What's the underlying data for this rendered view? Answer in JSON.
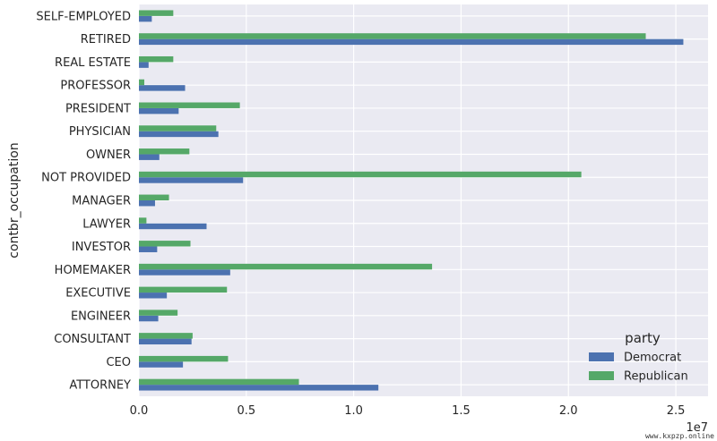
{
  "chart_data": {
    "type": "bar",
    "orientation": "horizontal",
    "ylabel": "contbr_occupation",
    "xlabel": "",
    "offset_label": "1e7",
    "xlim": [
      0,
      2.65
    ],
    "xticks": [
      "0.0",
      "0.5",
      "1.0",
      "1.5",
      "2.0",
      "2.5"
    ],
    "xtick_values": [
      0.0,
      0.5,
      1.0,
      1.5,
      2.0,
      2.5
    ],
    "grid": true,
    "legend_title": "party",
    "legend_position": "lower-right",
    "categories": [
      "ATTORNEY",
      "CEO",
      "CONSULTANT",
      "ENGINEER",
      "EXECUTIVE",
      "HOMEMAKER",
      "INVESTOR",
      "LAWYER",
      "MANAGER",
      "NOT PROVIDED",
      "OWNER",
      "PHYSICIAN",
      "PRESIDENT",
      "PROFESSOR",
      "REAL ESTATE",
      "RETIRED",
      "SELF-EMPLOYED"
    ],
    "series": [
      {
        "name": "Democrat",
        "color": "#4c72b0",
        "values": [
          1.115,
          0.205,
          0.245,
          0.09,
          0.13,
          0.425,
          0.085,
          0.315,
          0.075,
          0.485,
          0.095,
          0.37,
          0.185,
          0.215,
          0.045,
          2.535,
          0.06
        ]
      },
      {
        "name": "Republican",
        "color": "#55a868",
        "values": [
          0.745,
          0.415,
          0.25,
          0.18,
          0.41,
          1.365,
          0.24,
          0.035,
          0.14,
          2.06,
          0.235,
          0.36,
          0.47,
          0.025,
          0.16,
          2.36,
          0.16
        ]
      }
    ]
  },
  "watermark": "www.kxpzp.online"
}
